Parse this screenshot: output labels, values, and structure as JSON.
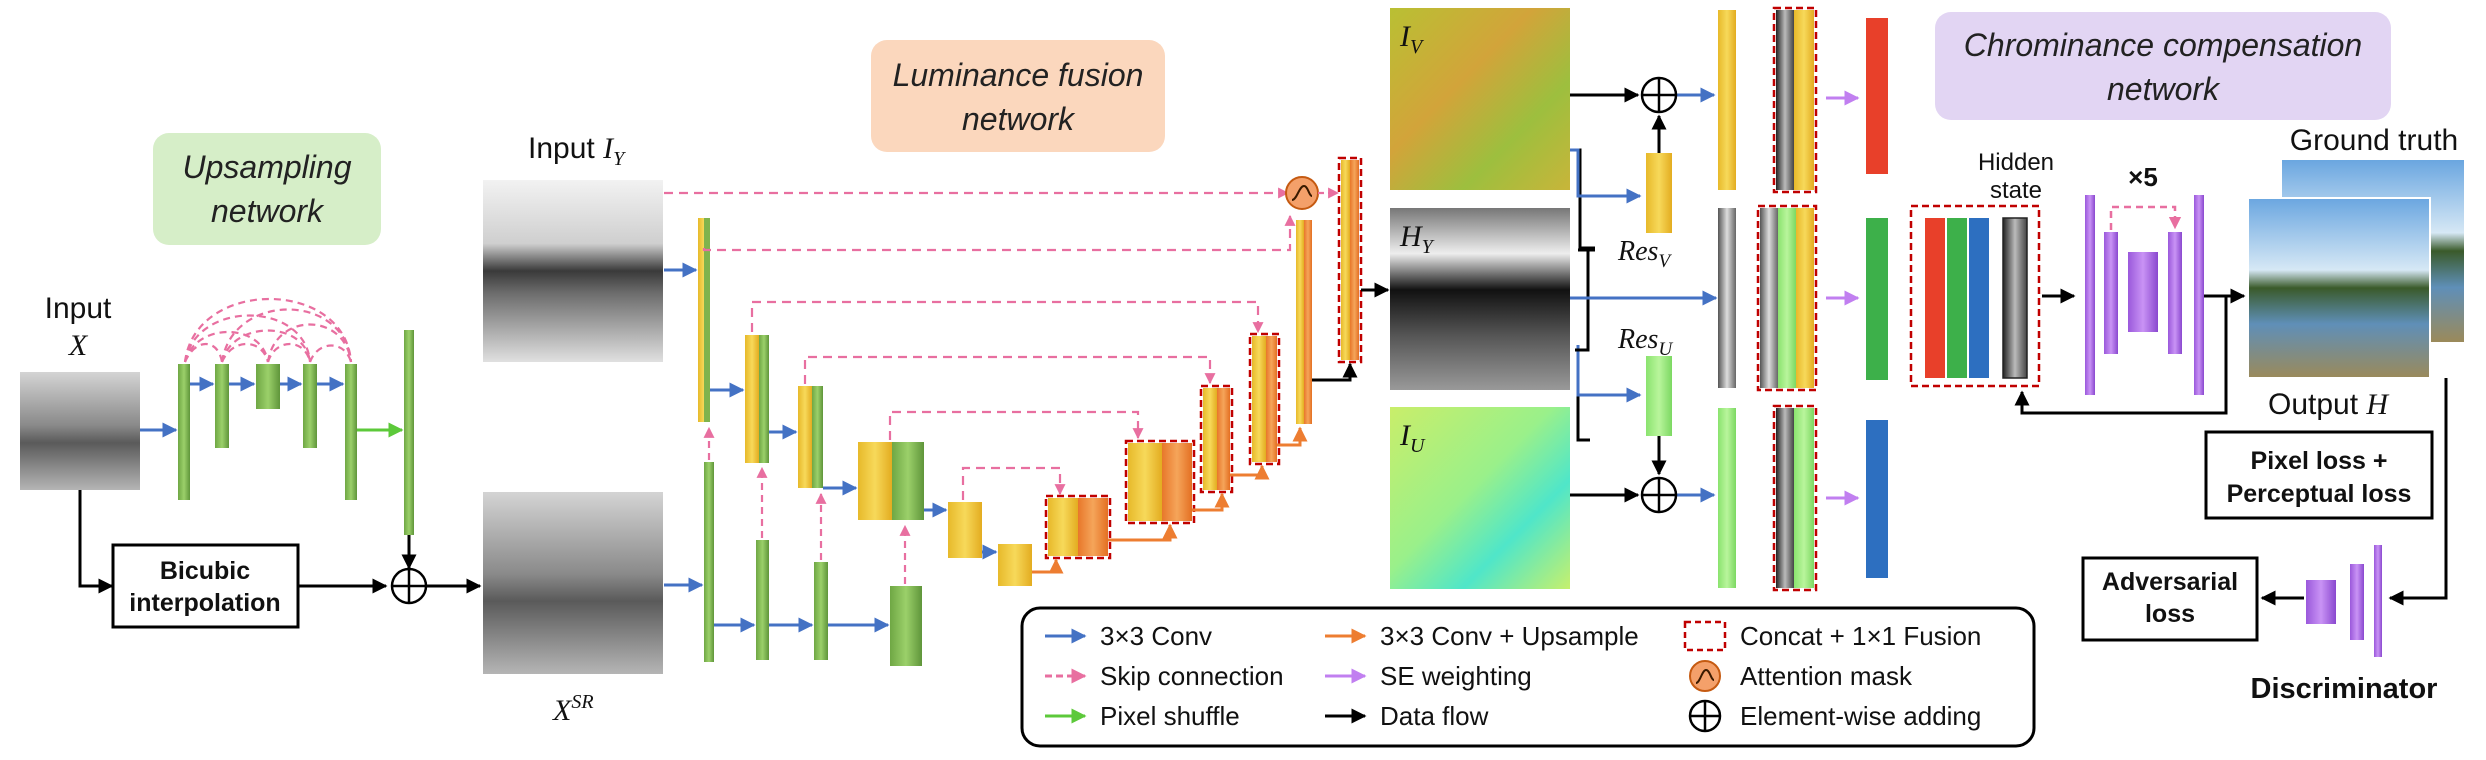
{
  "networks": {
    "upsampling": [
      "Upsampling",
      "network"
    ],
    "luminance": [
      "Luminance fusion",
      "network"
    ],
    "chrominance": [
      "Chrominance compensation",
      "network"
    ]
  },
  "labels": {
    "input_word": "Input",
    "input_x": "X",
    "input_iy_word": "Input ",
    "input_iy_sym": "I",
    "input_iy_sub": "Y",
    "xsr": "X",
    "xsr_sup": "SR",
    "bicubic": [
      "Bicubic",
      "interpolation"
    ],
    "iv": "I",
    "iv_sub": "V",
    "hy": "H",
    "hy_sub": "Y",
    "iu": "I",
    "iu_sub": "U",
    "resv": "Res",
    "resv_sub": "V",
    "resu": "Res",
    "resu_sub": "U",
    "hidden_state": [
      "Hidden",
      "state"
    ],
    "times5": "×5",
    "ground_truth": "Ground truth",
    "output_word": "Output ",
    "output_sym": "H",
    "pixel_loss": [
      "Pixel loss +",
      "Perceptual loss"
    ],
    "adversarial": [
      "Adversarial",
      "loss"
    ],
    "discriminator": "Discriminator"
  },
  "legend": [
    {
      "key": "conv",
      "label": "3×3 Conv",
      "color": "#4472c4",
      "style": "solid"
    },
    {
      "key": "skip",
      "label": "Skip connection",
      "color": "#e86fa0",
      "style": "dashed"
    },
    {
      "key": "shuffle",
      "label": "Pixel shuffle",
      "color": "#5cc93a",
      "style": "solid"
    },
    {
      "key": "convup",
      "label": "3×3 Conv + Upsample",
      "color": "#ed7d31",
      "style": "solid"
    },
    {
      "key": "se",
      "label": "SE weighting",
      "color": "#c17ff0",
      "style": "solid"
    },
    {
      "key": "flow",
      "label": "Data flow",
      "color": "#000000",
      "style": "solid"
    },
    {
      "key": "concat",
      "label": "Concat + 1×1 Fusion",
      "color": "#c00000",
      "style": "box-dashed"
    },
    {
      "key": "attn",
      "label": "Attention mask",
      "color": "#f4a06a",
      "style": "circle"
    },
    {
      "key": "add",
      "label": "Element-wise adding",
      "color": "#000000",
      "style": "plus"
    }
  ],
  "colors": {
    "green_net": "#d6eec8",
    "orange_net": "#fbd7bd",
    "purple_net": "#e2d5f3",
    "green_block": "#7fb34d",
    "yellow_block": "#f2c832",
    "orange_block": "#ef8a3c",
    "purple_block": "#b173e8",
    "red_feat": "#e8402a",
    "green_feat": "#3db04a",
    "blue_feat": "#2d6fc0"
  }
}
